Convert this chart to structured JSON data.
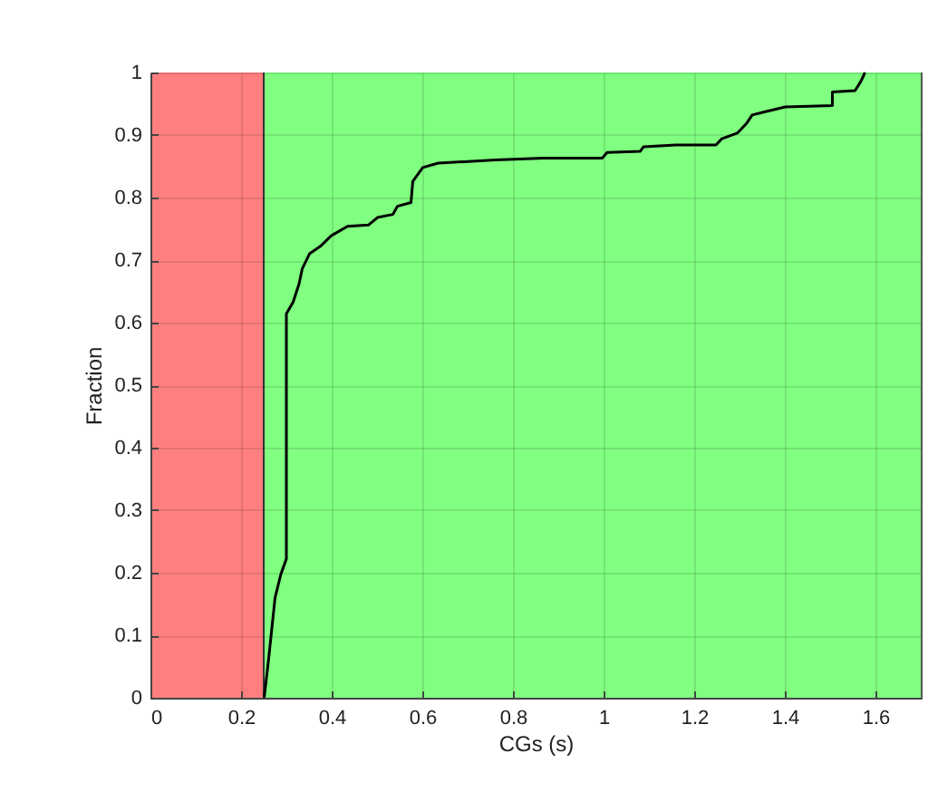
{
  "chart_data": {
    "type": "line",
    "xlabel": "CGs (s)",
    "ylabel": "Fraction",
    "x": [
      0.251,
      0.261,
      0.275,
      0.288,
      0.3,
      0.3,
      0.315,
      0.328,
      0.335,
      0.351,
      0.375,
      0.399,
      0.435,
      0.481,
      0.501,
      0.535,
      0.545,
      0.575,
      0.579,
      0.601,
      0.635,
      0.761,
      0.868,
      0.997,
      1.008,
      1.081,
      1.088,
      1.159,
      1.248,
      1.261,
      1.295,
      1.315,
      1.328,
      1.355,
      1.401,
      1.505,
      1.505,
      1.555,
      1.568,
      1.577
    ],
    "series": [
      {
        "color": "#000000",
        "values": [
          0,
          0.063,
          0.16,
          0.198,
          0.222,
          0.614,
          0.633,
          0.662,
          0.686,
          0.71,
          0.722,
          0.739,
          0.754,
          0.756,
          0.768,
          0.773,
          0.786,
          0.792,
          0.826,
          0.848,
          0.855,
          0.86,
          0.863,
          0.863,
          0.872,
          0.874,
          0.881,
          0.884,
          0.884,
          0.894,
          0.903,
          0.918,
          0.932,
          0.937,
          0.945,
          0.947,
          0.969,
          0.971,
          0.986,
          1.0
        ]
      }
    ],
    "bands": [
      {
        "axis": "x",
        "from": 0,
        "to": 0.25,
        "color": "#ff7f7f"
      },
      {
        "axis": "x",
        "from": 0.25,
        "to": 1.7,
        "color": "#80ff80"
      }
    ],
    "ref_lines": [
      {
        "axis": "x",
        "value": 0.25,
        "color": "#333333"
      }
    ],
    "xlim": [
      0,
      1.7
    ],
    "xticks": [
      0,
      0.2,
      0.4,
      0.6,
      0.8,
      1,
      1.2,
      1.4,
      1.6
    ],
    "ylim": [
      0,
      1
    ],
    "yticks": [
      0,
      0.1,
      0.2,
      0.3,
      0.4,
      0.5,
      0.6,
      0.7,
      0.8,
      0.9,
      1
    ],
    "grid": true
  }
}
